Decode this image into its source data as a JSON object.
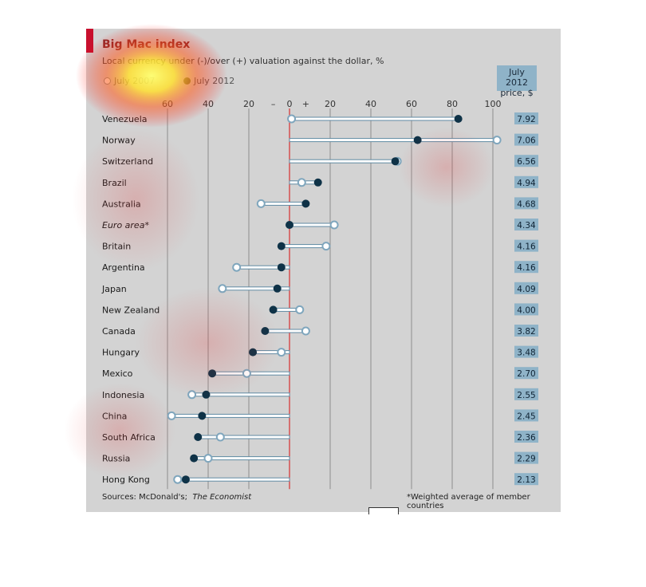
{
  "chart_data": {
    "type": "dumbbell",
    "title": "Big Mac index",
    "subtitle": "Local currency under (-)/over (+) valuation against the dollar, %",
    "legend": [
      {
        "name": "July 2007",
        "marker": "open-circle",
        "color": "#7fa6bd"
      },
      {
        "name": "July 2012",
        "marker": "filled-circle",
        "color": "#0e3247"
      }
    ],
    "legend_placement": "top-left",
    "xlim": [
      -60,
      100
    ],
    "x_ticks": [
      -60,
      -40,
      -20,
      0,
      20,
      40,
      60,
      80,
      100
    ],
    "x_tick_labels": [
      "60",
      "40",
      "20",
      "0",
      "20",
      "40",
      "60",
      "80",
      "100"
    ],
    "sign_labels": [
      "–",
      "+"
    ],
    "grid": true,
    "price_header": [
      "July 2012",
      "price, $"
    ],
    "rows": [
      {
        "country": "Venezuela",
        "italic": false,
        "v2007": 1,
        "v2012": 83,
        "price": "7.92"
      },
      {
        "country": "Norway",
        "italic": false,
        "v2007": 102,
        "v2012": 63,
        "price": "7.06"
      },
      {
        "country": "Switzerland",
        "italic": false,
        "v2007": 53,
        "v2012": 52,
        "price": "6.56"
      },
      {
        "country": "Brazil",
        "italic": false,
        "v2007": 6,
        "v2012": 14,
        "price": "4.94"
      },
      {
        "country": "Australia",
        "italic": false,
        "v2007": -14,
        "v2012": 8,
        "price": "4.68"
      },
      {
        "country": "Euro area*",
        "italic": true,
        "v2007": 22,
        "v2012": 0,
        "price": "4.34"
      },
      {
        "country": "Britain",
        "italic": false,
        "v2007": 18,
        "v2012": -4,
        "price": "4.16"
      },
      {
        "country": "Argentina",
        "italic": false,
        "v2007": -26,
        "v2012": -4,
        "price": "4.16"
      },
      {
        "country": "Japan",
        "italic": false,
        "v2007": -33,
        "v2012": -6,
        "price": "4.09"
      },
      {
        "country": "New Zealand",
        "italic": false,
        "v2007": 5,
        "v2012": -8,
        "price": "4.00"
      },
      {
        "country": "Canada",
        "italic": false,
        "v2007": 8,
        "v2012": -12,
        "price": "3.82"
      },
      {
        "country": "Hungary",
        "italic": false,
        "v2007": -4,
        "v2012": -18,
        "price": "3.48"
      },
      {
        "country": "Mexico",
        "italic": false,
        "v2007": -21,
        "v2012": -38,
        "price": "2.70"
      },
      {
        "country": "Indonesia",
        "italic": false,
        "v2007": -48,
        "v2012": -41,
        "price": "2.55"
      },
      {
        "country": "China",
        "italic": false,
        "v2007": -58,
        "v2012": -43,
        "price": "2.45"
      },
      {
        "country": "South Africa",
        "italic": false,
        "v2007": -34,
        "v2012": -45,
        "price": "2.36"
      },
      {
        "country": "Russia",
        "italic": false,
        "v2007": -40,
        "v2012": -47,
        "price": "2.29"
      },
      {
        "country": "Hong Kong",
        "italic": false,
        "v2007": -55,
        "v2012": -51,
        "price": "2.13"
      }
    ],
    "sources_label": "Sources: McDonald's;",
    "sources_italic": "The Economist",
    "footnote": "*Weighted average of member countries"
  },
  "colors": {
    "background": "#d3d3d3",
    "grid": "#8e8e8e",
    "zero_line": "#d62f2f",
    "marker_2012": "#0e3247",
    "marker_2007": "#7fa6bd",
    "connector": "#5f8aa3",
    "price_box": "#8fb3c8",
    "title": "#8a2a2a"
  }
}
